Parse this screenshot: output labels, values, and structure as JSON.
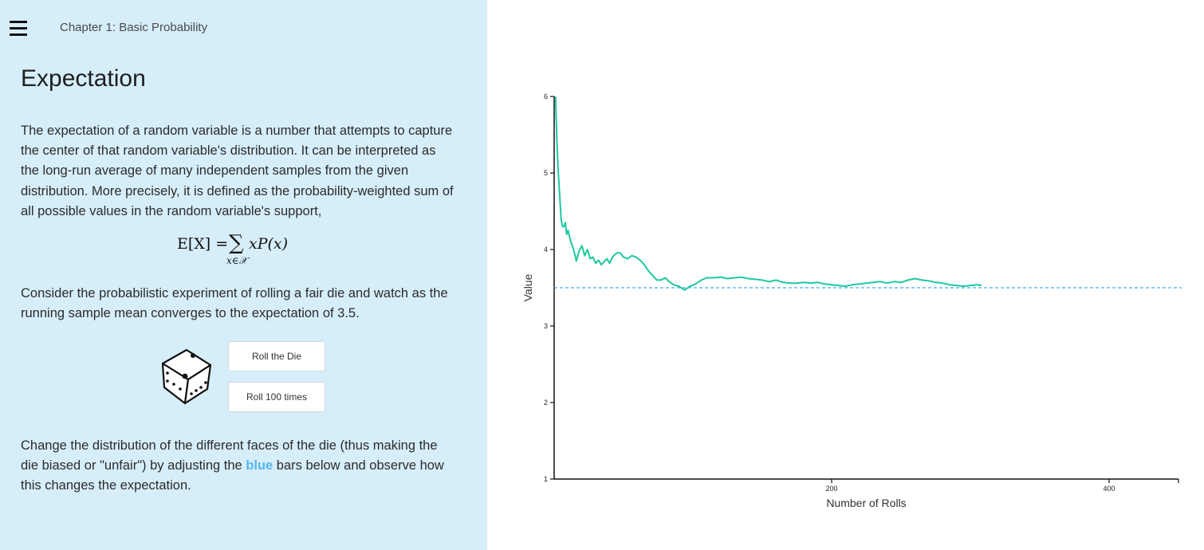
{
  "header": {
    "menu_icon": "hamburger-menu-icon",
    "breadcrumb": "Chapter 1: Basic Probability"
  },
  "page": {
    "title": "Expectation",
    "intro": "The expectation of a random variable is a number that attempts to capture the center of that random variable's distribution. It can be interpreted as the long-run average of many independent samples from the given distribution. More precisely, it is defined as the probability-weighted sum of all possible values in the random variable's support,",
    "formula": {
      "lhs": "E[X] =",
      "sum_symbol": "∑",
      "rhs": "xP(x)",
      "subscript": "x∈𝒳"
    },
    "experiment_text": "Consider the probabilistic experiment of rolling a fair die and watch as the running sample mean converges to the expectation of 3.5.",
    "dice_icon": "dice-icon",
    "roll_button": "Roll the Die",
    "roll100_button": "Roll 100 times",
    "change_text_before": "Change the distribution of the different faces of the die (thus making the die biased or \"unfair\") by adjusting the ",
    "change_text_blue": "blue",
    "change_text_after": " bars below and observe how this changes the expectation."
  },
  "colors": {
    "left_panel_bg": "#d6eefa",
    "running_mean_line": "#1dc8a0",
    "expectation_line": "#4aa6e8",
    "blue_word": "#56b5ee"
  },
  "chart_data": {
    "type": "line",
    "xlabel": "Number of Rolls",
    "ylabel": "Value",
    "xlim": [
      0,
      450
    ],
    "ylim": [
      1,
      6
    ],
    "xticks": [
      200,
      400
    ],
    "yticks": [
      1,
      2,
      3,
      4,
      5,
      6
    ],
    "expectation": 3.5,
    "series": [
      {
        "x": [
          1,
          2,
          3,
          4,
          5,
          6,
          7,
          8,
          9,
          10,
          12,
          14,
          16,
          18,
          20,
          22,
          24,
          26,
          28,
          30,
          32,
          34,
          36,
          38,
          40,
          42,
          44,
          46,
          48,
          50,
          53,
          56,
          59,
          62,
          65,
          68,
          71,
          74,
          77,
          80,
          83,
          86,
          90,
          94,
          98,
          102,
          106,
          110,
          115,
          120,
          125,
          130,
          135,
          140,
          145,
          150,
          155,
          160,
          165,
          170,
          175,
          180,
          185,
          190,
          195,
          200,
          205,
          210,
          215,
          220,
          225,
          230,
          235,
          240,
          245,
          250,
          255,
          260,
          265,
          270,
          275,
          280,
          285,
          290,
          295,
          300,
          305,
          308
        ],
        "y": [
          6.0,
          5.4,
          5.0,
          4.7,
          4.4,
          4.3,
          4.3,
          4.35,
          4.2,
          4.25,
          4.1,
          4.0,
          3.85,
          3.98,
          4.05,
          3.92,
          4.0,
          3.88,
          3.9,
          3.82,
          3.86,
          3.8,
          3.84,
          3.88,
          3.82,
          3.9,
          3.94,
          3.96,
          3.95,
          3.9,
          3.88,
          3.92,
          3.9,
          3.86,
          3.8,
          3.72,
          3.66,
          3.6,
          3.6,
          3.63,
          3.58,
          3.54,
          3.52,
          3.47,
          3.52,
          3.55,
          3.6,
          3.63,
          3.63,
          3.64,
          3.62,
          3.63,
          3.64,
          3.62,
          3.61,
          3.6,
          3.58,
          3.6,
          3.57,
          3.56,
          3.56,
          3.57,
          3.56,
          3.57,
          3.55,
          3.54,
          3.53,
          3.52,
          3.54,
          3.55,
          3.56,
          3.57,
          3.58,
          3.56,
          3.58,
          3.57,
          3.6,
          3.62,
          3.6,
          3.59,
          3.57,
          3.56,
          3.54,
          3.53,
          3.52,
          3.53,
          3.54,
          3.53
        ]
      }
    ]
  }
}
